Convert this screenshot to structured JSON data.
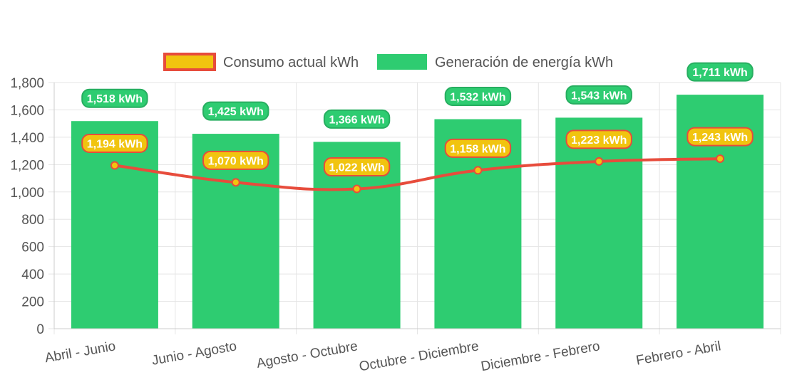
{
  "chart_data": {
    "type": "bar",
    "categories": [
      "Abril - Junio",
      "Junio - Agosto",
      "Agosto - Octubre",
      "Octubre - Diciembre",
      "Diciembre - Febrero",
      "Febrero - Abril"
    ],
    "series": [
      {
        "name": "Consumo actual kWh",
        "type": "line",
        "values": [
          1194,
          1070,
          1022,
          1158,
          1223,
          1243
        ],
        "labels": [
          "1,194 kWh",
          "1,070 kWh",
          "1,022 kWh",
          "1,158 kWh",
          "1,223 kWh",
          "1,243 kWh"
        ],
        "color": "#e74c3c",
        "fill_color": "#f1c40f"
      },
      {
        "name": "Generación de energía kWh",
        "type": "bar",
        "values": [
          1518,
          1425,
          1366,
          1532,
          1543,
          1711
        ],
        "labels": [
          "1,518 kWh",
          "1,425 kWh",
          "1,366 kWh",
          "1,532 kWh",
          "1,543 kWh",
          "1,711 kWh"
        ],
        "color": "#2ecc71",
        "label_border": "#27ae60"
      }
    ],
    "ylim": [
      0,
      1800
    ],
    "y_ticks": [
      0,
      200,
      400,
      600,
      800,
      1000,
      1200,
      1400,
      1600,
      1800
    ],
    "y_tick_labels": [
      "0",
      "200",
      "400",
      "600",
      "800",
      "1,000",
      "1,200",
      "1,400",
      "1,600",
      "1,800"
    ],
    "grid": true,
    "legend_position": "top",
    "grid_color": "#e5e5e5",
    "axis_color": "#cccccc"
  }
}
